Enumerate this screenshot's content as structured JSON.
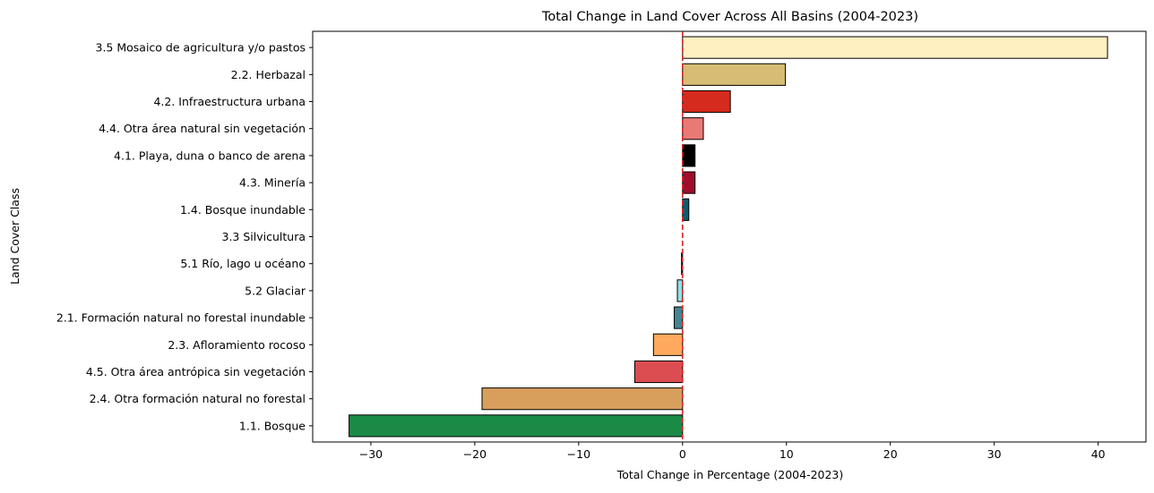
{
  "chart_data": {
    "type": "bar",
    "orientation": "horizontal",
    "title": "Total Change in Land Cover Across All Basins (2004-2023)",
    "xlabel": "Total Change in Percentage (2004-2023)",
    "ylabel": "Land Cover Class",
    "xlim": [
      -35.6,
      44.6
    ],
    "xticks": [
      -30,
      -20,
      -10,
      0,
      10,
      20,
      30,
      40
    ],
    "xtick_labels": [
      "−30",
      "−20",
      "−10",
      "0",
      "10",
      "20",
      "30",
      "40"
    ],
    "grid": false,
    "reference_line": {
      "x": 0,
      "color": "#d62728",
      "style": "dashed"
    },
    "categories": [
      "3.5 Mosaico de agricultura y/o pastos",
      "2.2. Herbazal",
      "4.2. Infraestructura urbana",
      "4.4. Otra área natural sin vegetación",
      "4.1. Playa, duna o banco de arena",
      "4.3. Minería",
      "1.4. Bosque inundable",
      "3.3 Silvicultura",
      "5.1 Río, lago u océano",
      "5.2 Glaciar",
      "2.1. Formación natural no forestal inundable",
      "2.3. Afloramiento rocoso",
      "4.5. Otra área antrópica sin vegetación",
      "2.4. Otra formación natural no forestal",
      "1.1. Bosque"
    ],
    "values": [
      40.9,
      9.9,
      4.6,
      2.0,
      1.2,
      1.2,
      0.6,
      0.0,
      -0.1,
      -0.5,
      -0.8,
      -2.8,
      -4.6,
      -19.3,
      -32.1
    ],
    "colors": [
      "#fff0c2",
      "#d6bc74",
      "#d52b1e",
      "#e87a75",
      "#000000",
      "#a00c2b",
      "#0e5c6b",
      "#7a5900",
      "#2532e4",
      "#93dfe6",
      "#45858f",
      "#ffa95e",
      "#dc4d52",
      "#d89f5c",
      "#1b8a47"
    ]
  }
}
